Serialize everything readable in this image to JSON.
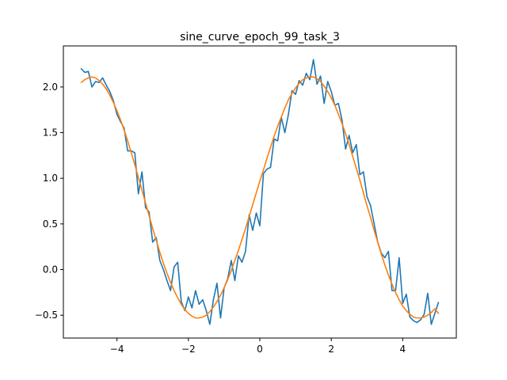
{
  "chart_data": {
    "type": "line",
    "title": "sine_curve_epoch_99_task_3",
    "xlabel": "",
    "ylabel": "",
    "xlim": [
      -5.5,
      5.5
    ],
    "ylim": [
      -0.75,
      2.45
    ],
    "xticks": [
      -4,
      -2,
      0,
      2,
      4
    ],
    "xtick_labels": [
      "−4",
      "−2",
      "0",
      "2",
      "4"
    ],
    "yticks": [
      -0.5,
      0.0,
      0.5,
      1.0,
      1.5,
      2.0
    ],
    "ytick_labels": [
      "−0.5",
      "0.0",
      "0.5",
      "1.0",
      "1.5",
      "2.0"
    ],
    "grid": false,
    "legend": "none",
    "series": [
      {
        "color": "#1f77b4",
        "x": [
          -5.0,
          -4.9,
          -4.8,
          -4.7,
          -4.6,
          -4.5,
          -4.4,
          -4.3,
          -4.2,
          -4.1,
          -4.0,
          -3.9,
          -3.8,
          -3.7,
          -3.6,
          -3.5,
          -3.4,
          -3.3,
          -3.2,
          -3.1,
          -3.0,
          -2.9,
          -2.8,
          -2.7,
          -2.6,
          -2.5,
          -2.4,
          -2.3,
          -2.2,
          -2.1,
          -2.0,
          -1.9,
          -1.8,
          -1.7,
          -1.6,
          -1.5,
          -1.4,
          -1.3,
          -1.2,
          -1.1,
          -1.0,
          -0.9,
          -0.8,
          -0.7,
          -0.6,
          -0.5,
          -0.4,
          -0.3,
          -0.2,
          -0.1,
          0.0,
          0.1,
          0.2,
          0.3,
          0.4,
          0.5,
          0.6,
          0.7,
          0.8,
          0.9,
          1.0,
          1.1,
          1.2,
          1.3,
          1.4,
          1.5,
          1.6,
          1.7,
          1.8,
          1.9,
          2.0,
          2.1,
          2.2,
          2.3,
          2.4,
          2.5,
          2.6,
          2.7,
          2.8,
          2.9,
          3.0,
          3.1,
          3.2,
          3.3,
          3.4,
          3.5,
          3.6,
          3.7,
          3.8,
          3.9,
          4.0,
          4.1,
          4.2,
          4.3,
          4.4,
          4.5,
          4.6,
          4.7,
          4.8,
          4.9,
          5.0
        ],
        "y": [
          2.2,
          2.16,
          2.17,
          2.0,
          2.06,
          2.05,
          2.1,
          2.02,
          1.95,
          1.85,
          1.7,
          1.62,
          1.55,
          1.3,
          1.3,
          1.28,
          0.83,
          1.07,
          0.68,
          0.63,
          0.3,
          0.35,
          0.1,
          0.0,
          -0.12,
          -0.23,
          0.03,
          0.08,
          -0.35,
          -0.45,
          -0.3,
          -0.42,
          -0.23,
          -0.38,
          -0.33,
          -0.45,
          -0.6,
          -0.33,
          -0.15,
          -0.53,
          -0.2,
          -0.1,
          0.1,
          -0.12,
          0.15,
          0.08,
          0.2,
          0.6,
          0.43,
          0.62,
          0.48,
          1.05,
          1.1,
          1.12,
          1.43,
          1.41,
          1.67,
          1.5,
          1.7,
          1.96,
          1.92,
          2.07,
          2.02,
          2.15,
          2.08,
          2.3,
          2.03,
          2.12,
          1.82,
          2.06,
          1.95,
          1.8,
          1.82,
          1.64,
          1.32,
          1.47,
          1.28,
          1.37,
          1.04,
          1.07,
          0.8,
          0.7,
          0.5,
          0.3,
          0.18,
          0.13,
          0.2,
          -0.23,
          -0.23,
          0.13,
          -0.37,
          -0.27,
          -0.52,
          -0.56,
          -0.58,
          -0.55,
          -0.49,
          -0.26,
          -0.6,
          -0.48,
          -0.36
        ]
      },
      {
        "color": "#ff7f0e",
        "x": [
          -5.0,
          -4.9,
          -4.8,
          -4.7,
          -4.6,
          -4.5,
          -4.4,
          -4.3,
          -4.2,
          -4.1,
          -4.0,
          -3.9,
          -3.8,
          -3.7,
          -3.6,
          -3.5,
          -3.4,
          -3.3,
          -3.2,
          -3.1,
          -3.0,
          -2.9,
          -2.8,
          -2.7,
          -2.6,
          -2.5,
          -2.4,
          -2.3,
          -2.2,
          -2.1,
          -2.0,
          -1.9,
          -1.8,
          -1.7,
          -1.6,
          -1.5,
          -1.4,
          -1.3,
          -1.2,
          -1.1,
          -1.0,
          -0.9,
          -0.8,
          -0.7,
          -0.6,
          -0.5,
          -0.4,
          -0.3,
          -0.2,
          -0.1,
          0.0,
          0.1,
          0.2,
          0.3,
          0.4,
          0.5,
          0.6,
          0.7,
          0.8,
          0.9,
          1.0,
          1.1,
          1.2,
          1.3,
          1.4,
          1.5,
          1.6,
          1.7,
          1.8,
          1.9,
          2.0,
          2.1,
          2.2,
          2.3,
          2.4,
          2.5,
          2.6,
          2.7,
          2.8,
          2.9,
          3.0,
          3.1,
          3.2,
          3.3,
          3.4,
          3.5,
          3.6,
          3.7,
          3.8,
          3.9,
          4.0,
          4.1,
          4.2,
          4.3,
          4.4,
          4.5,
          4.6,
          4.7,
          4.8,
          4.9,
          5.0
        ],
        "y": [
          2.05,
          2.08,
          2.1,
          2.11,
          2.1,
          2.07,
          2.03,
          1.98,
          1.91,
          1.83,
          1.74,
          1.64,
          1.53,
          1.41,
          1.28,
          1.15,
          1.01,
          0.87,
          0.73,
          0.59,
          0.45,
          0.32,
          0.19,
          0.07,
          -0.04,
          -0.14,
          -0.23,
          -0.31,
          -0.38,
          -0.44,
          -0.48,
          -0.51,
          -0.53,
          -0.53,
          -0.52,
          -0.5,
          -0.46,
          -0.41,
          -0.35,
          -0.28,
          -0.2,
          -0.11,
          -0.01,
          0.1,
          0.21,
          0.33,
          0.45,
          0.58,
          0.71,
          0.84,
          0.97,
          1.09,
          1.22,
          1.34,
          1.46,
          1.57,
          1.67,
          1.77,
          1.86,
          1.93,
          1.99,
          2.04,
          2.08,
          2.1,
          2.11,
          2.11,
          2.09,
          2.06,
          2.01,
          1.95,
          1.88,
          1.8,
          1.7,
          1.6,
          1.49,
          1.37,
          1.24,
          1.11,
          0.98,
          0.84,
          0.7,
          0.57,
          0.43,
          0.3,
          0.17,
          0.05,
          -0.06,
          -0.16,
          -0.25,
          -0.33,
          -0.4,
          -0.45,
          -0.49,
          -0.52,
          -0.53,
          -0.53,
          -0.52,
          -0.5,
          -0.47,
          -0.43,
          -0.48
        ]
      }
    ]
  }
}
